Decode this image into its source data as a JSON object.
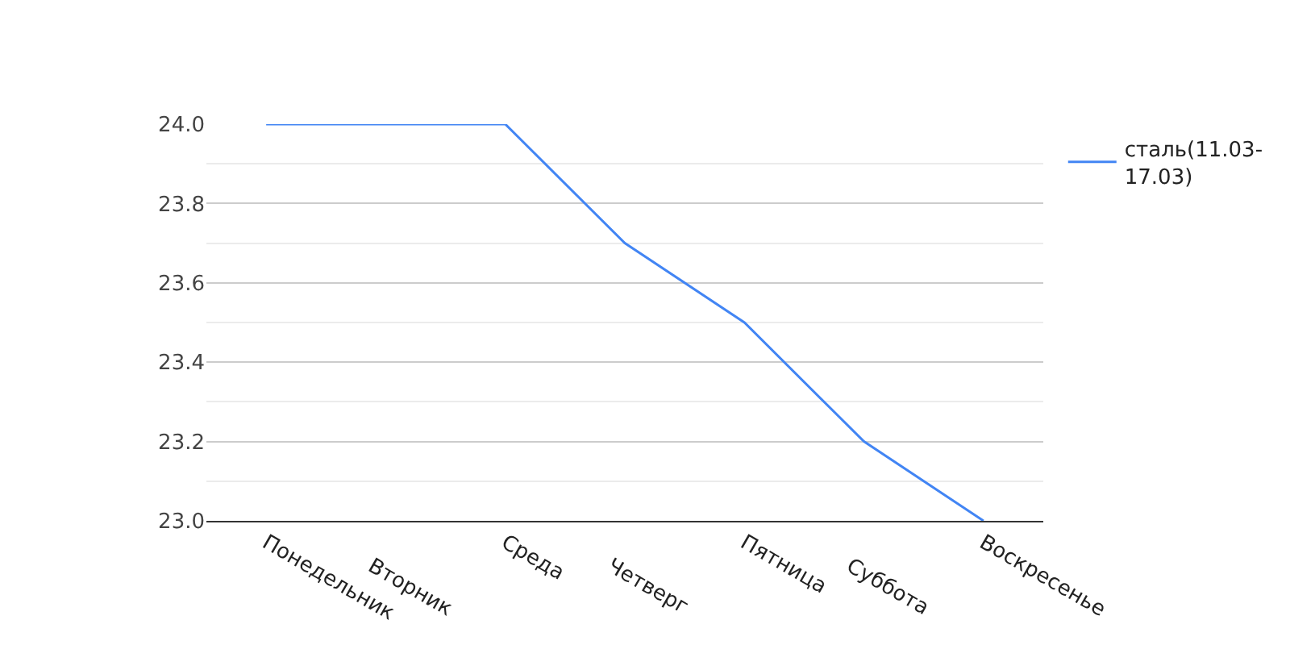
{
  "chart_data": {
    "type": "line",
    "categories": [
      "Понедельник",
      "Вторник",
      "Среда",
      "Четверг",
      "Пятница",
      "Суббота",
      "Воскресенье"
    ],
    "series": [
      {
        "name": "сталь(11.03-17.03)",
        "color": "#4285f4",
        "values": [
          24.0,
          24.0,
          24.0,
          23.7,
          23.5,
          23.2,
          23.0
        ]
      }
    ],
    "ylim": [
      23.0,
      24.0
    ],
    "yticks": [
      {
        "value": 23.0,
        "label": "23.0"
      },
      {
        "value": 23.1,
        "label": null
      },
      {
        "value": 23.2,
        "label": "23.2"
      },
      {
        "value": 23.3,
        "label": null
      },
      {
        "value": 23.4,
        "label": "23.4"
      },
      {
        "value": 23.5,
        "label": null
      },
      {
        "value": 23.6,
        "label": "23.6"
      },
      {
        "value": 23.7,
        "label": null
      },
      {
        "value": 23.8,
        "label": "23.8"
      },
      {
        "value": 23.9,
        "label": null
      },
      {
        "value": 24.0,
        "label": "24.0"
      }
    ],
    "grid": "y",
    "legend": "top right",
    "marker": "none",
    "line_style": "solid"
  }
}
